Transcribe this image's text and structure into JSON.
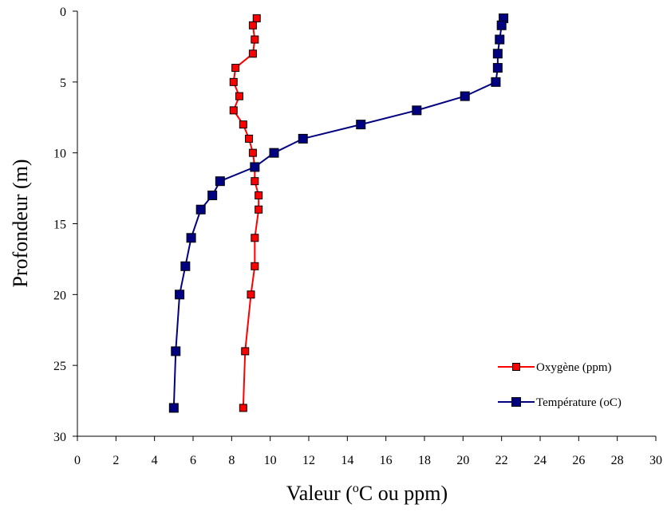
{
  "chart_data": {
    "type": "line",
    "xlabel_main": "Valeur (",
    "xlabel_sup": "o",
    "xlabel_rest": "C ou ppm)",
    "ylabel": "Profondeur (m)",
    "xlim": [
      0,
      30
    ],
    "ylim": [
      0,
      30
    ],
    "y_inverted": true,
    "xticks": [
      0,
      2,
      4,
      6,
      8,
      10,
      12,
      14,
      16,
      18,
      20,
      22,
      24,
      26,
      28,
      30
    ],
    "yticks": [
      0,
      5,
      10,
      15,
      20,
      25,
      30
    ],
    "grid": false,
    "legend_position": "bottom-right",
    "series": [
      {
        "name": "Oxygène (ppm)",
        "color": "#ff0000",
        "marker_color": "#ff0000",
        "points": [
          [
            9.3,
            0.5
          ],
          [
            9.1,
            1
          ],
          [
            9.2,
            2
          ],
          [
            9.1,
            3
          ],
          [
            8.2,
            4
          ],
          [
            8.1,
            5
          ],
          [
            8.4,
            6
          ],
          [
            8.1,
            7
          ],
          [
            8.6,
            8
          ],
          [
            8.9,
            9
          ],
          [
            9.1,
            10
          ],
          [
            9.2,
            11
          ],
          [
            9.2,
            12
          ],
          [
            9.4,
            13
          ],
          [
            9.4,
            14
          ],
          [
            9.2,
            16
          ],
          [
            9.2,
            18
          ],
          [
            9.0,
            20
          ],
          [
            8.7,
            24
          ],
          [
            8.6,
            28
          ]
        ]
      },
      {
        "name": "Température (oC)",
        "color": "#000080",
        "marker_color": "#000080",
        "points": [
          [
            22.1,
            0.5
          ],
          [
            22.0,
            1
          ],
          [
            21.9,
            2
          ],
          [
            21.8,
            3
          ],
          [
            21.8,
            4
          ],
          [
            21.7,
            5
          ],
          [
            20.1,
            6
          ],
          [
            17.6,
            7
          ],
          [
            14.7,
            8
          ],
          [
            11.7,
            9
          ],
          [
            10.2,
            10
          ],
          [
            9.2,
            11
          ],
          [
            7.4,
            12
          ],
          [
            7.0,
            13
          ],
          [
            6.4,
            14
          ],
          [
            5.9,
            16
          ],
          [
            5.6,
            18
          ],
          [
            5.3,
            20
          ],
          [
            5.1,
            24
          ],
          [
            5.0,
            28
          ]
        ]
      }
    ]
  }
}
